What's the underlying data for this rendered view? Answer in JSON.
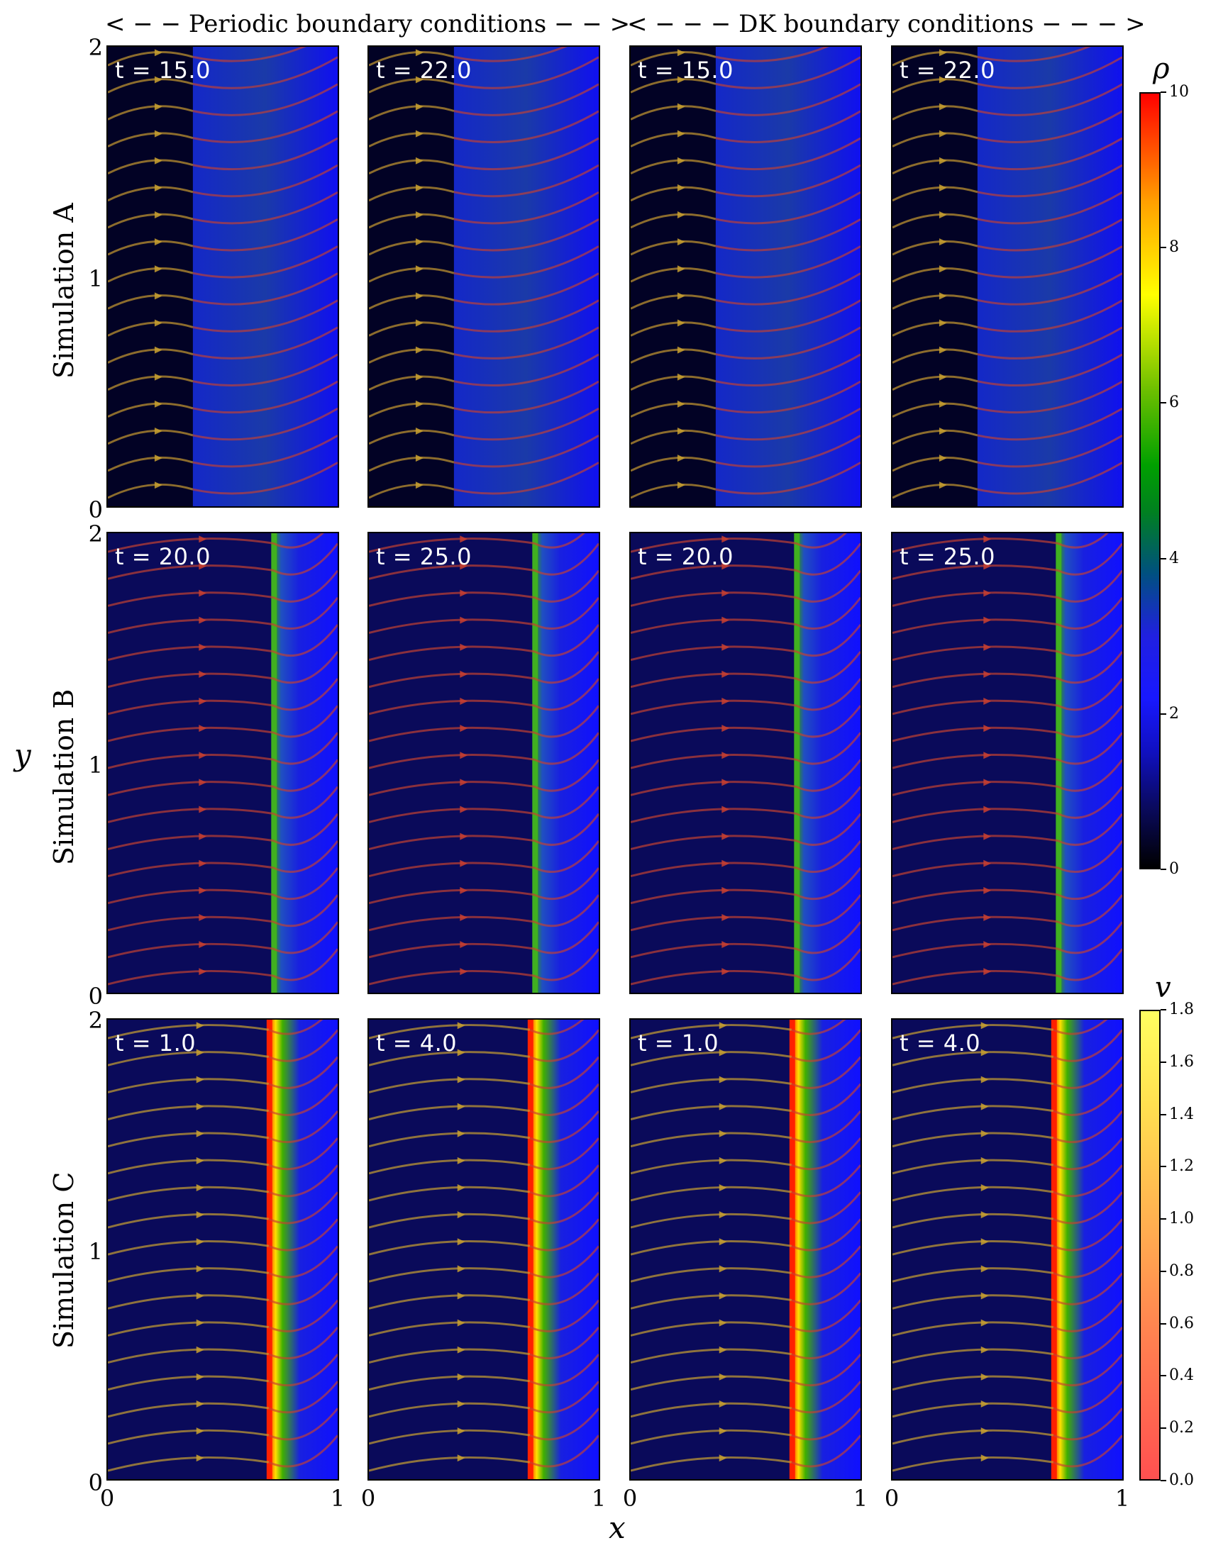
{
  "headers": {
    "periodic": "< − − Periodic boundary conditions − − >",
    "dk": "< − − − DK boundary conditions − − − >"
  },
  "axes": {
    "xlabel": "x",
    "ylabel": "y",
    "xticks": [
      "0",
      "1"
    ],
    "yticks": [
      "0",
      "1",
      "2"
    ]
  },
  "rows": [
    {
      "label": "Simulation A",
      "times": [
        "t = 15.0",
        "t = 22.0",
        "t = 15.0",
        "t = 22.0"
      ]
    },
    {
      "label": "Simulation B",
      "times": [
        "t = 20.0",
        "t = 25.0",
        "t = 20.0",
        "t = 25.0"
      ]
    },
    {
      "label": "Simulation C",
      "times": [
        "t = 1.0",
        "t = 4.0",
        "t = 1.0",
        "t = 4.0"
      ]
    }
  ],
  "colorbars": {
    "rho": {
      "title": "ρ",
      "ticks": [
        "0",
        "2",
        "4",
        "6",
        "8",
        "10"
      ],
      "min": 0,
      "max": 10,
      "colors": [
        "#000000",
        "#1010ff",
        "#00a000",
        "#ffff00",
        "#ff0000"
      ]
    },
    "v": {
      "title": "v",
      "ticks": [
        "0.0",
        "0.2",
        "0.4",
        "0.6",
        "0.8",
        "1.0",
        "1.2",
        "1.4",
        "1.6",
        "1.8"
      ],
      "min": 0,
      "max": 1.8,
      "colors": [
        "#ff4040",
        "#ffff40"
      ]
    }
  },
  "chart_data": {
    "type": "heatmap",
    "rows": [
      "Simulation A",
      "Simulation B",
      "Simulation C"
    ],
    "columns": [
      "Periodic boundary conditions",
      "Periodic boundary conditions",
      "DK boundary conditions",
      "DK boundary conditions"
    ],
    "xlim": [
      0,
      1
    ],
    "ylim": [
      0,
      2
    ],
    "xlabel": "x",
    "ylabel": "y",
    "front_x": [
      [
        0.37,
        0.37,
        0.37,
        0.37
      ],
      [
        0.72,
        0.72,
        0.72,
        0.72
      ],
      [
        0.7,
        0.7,
        0.7,
        0.7
      ]
    ],
    "colorbar_rho": {
      "label": "ρ",
      "range": [
        0,
        10
      ]
    },
    "colorbar_v": {
      "label": "v",
      "range": [
        0,
        1.8
      ]
    }
  }
}
